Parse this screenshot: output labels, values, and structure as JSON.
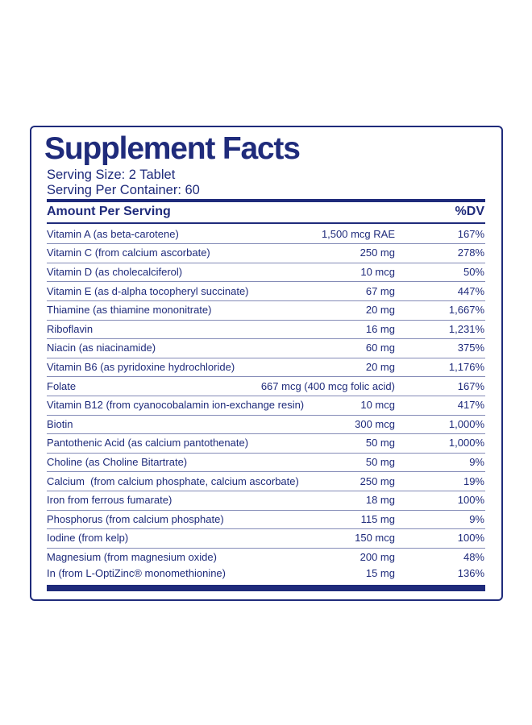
{
  "header": {
    "title": "Supplement Facts",
    "serving_size": "Serving Size: 2 Tablet",
    "servings_per_container": "Serving Per Container: 60"
  },
  "table": {
    "columns": [
      "Amount Per Serving",
      "%DV"
    ],
    "rows": [
      [
        "Vitamin A (as beta-carotene)",
        "1,500 mcg RAE",
        "167%"
      ],
      [
        "Vitamin C (from calcium ascorbate)",
        "250 mg",
        "278%"
      ],
      [
        "Vitamin D (as cholecalciferol)",
        "10 mcg",
        "50%"
      ],
      [
        "Vitamin E (as d-alpha tocopheryl succinate)",
        "67 mg",
        "447%"
      ],
      [
        "Thiamine (as thiamine mononitrate)",
        "20 mg",
        "1,667%"
      ],
      [
        "Riboflavin",
        "16 mg",
        "1,231%"
      ],
      [
        "Niacin (as niacinamide)",
        "60 mg",
        "375%"
      ],
      [
        "Vitamin B6 (as pyridoxine hydrochloride)",
        "20 mg",
        "1,176%"
      ],
      [
        "Folate",
        "667 mcg (400 mcg folic acid)",
        "167%"
      ],
      [
        "Vitamin B12 (from cyanocobalamin ion-exchange resin)",
        "10 mcg",
        "417%"
      ],
      [
        "Biotin",
        "300 mcg",
        "1,000%"
      ],
      [
        "Pantothenic Acid (as calcium pantothenate)",
        "50 mg",
        "1,000%"
      ],
      [
        "Choline (as Choline Bitartrate)",
        "50 mg",
        "9%"
      ],
      [
        "Calcium  (from calcium phosphate, calcium ascorbate)",
        "250 mg",
        "19%"
      ],
      [
        "Iron from ferrous fumarate)",
        "18 mg",
        "100%"
      ],
      [
        "Phosphorus (from calcium phosphate)",
        "115 mg",
        "9%"
      ],
      [
        "Iodine (from kelp)",
        "150 mcg",
        "100%"
      ],
      [
        "Magnesium (from magnesium oxide)",
        "200 mg",
        "48%"
      ],
      [
        "In (from L-OptiZinc® monomethionine)",
        "15 mg",
        "136%"
      ]
    ]
  }
}
